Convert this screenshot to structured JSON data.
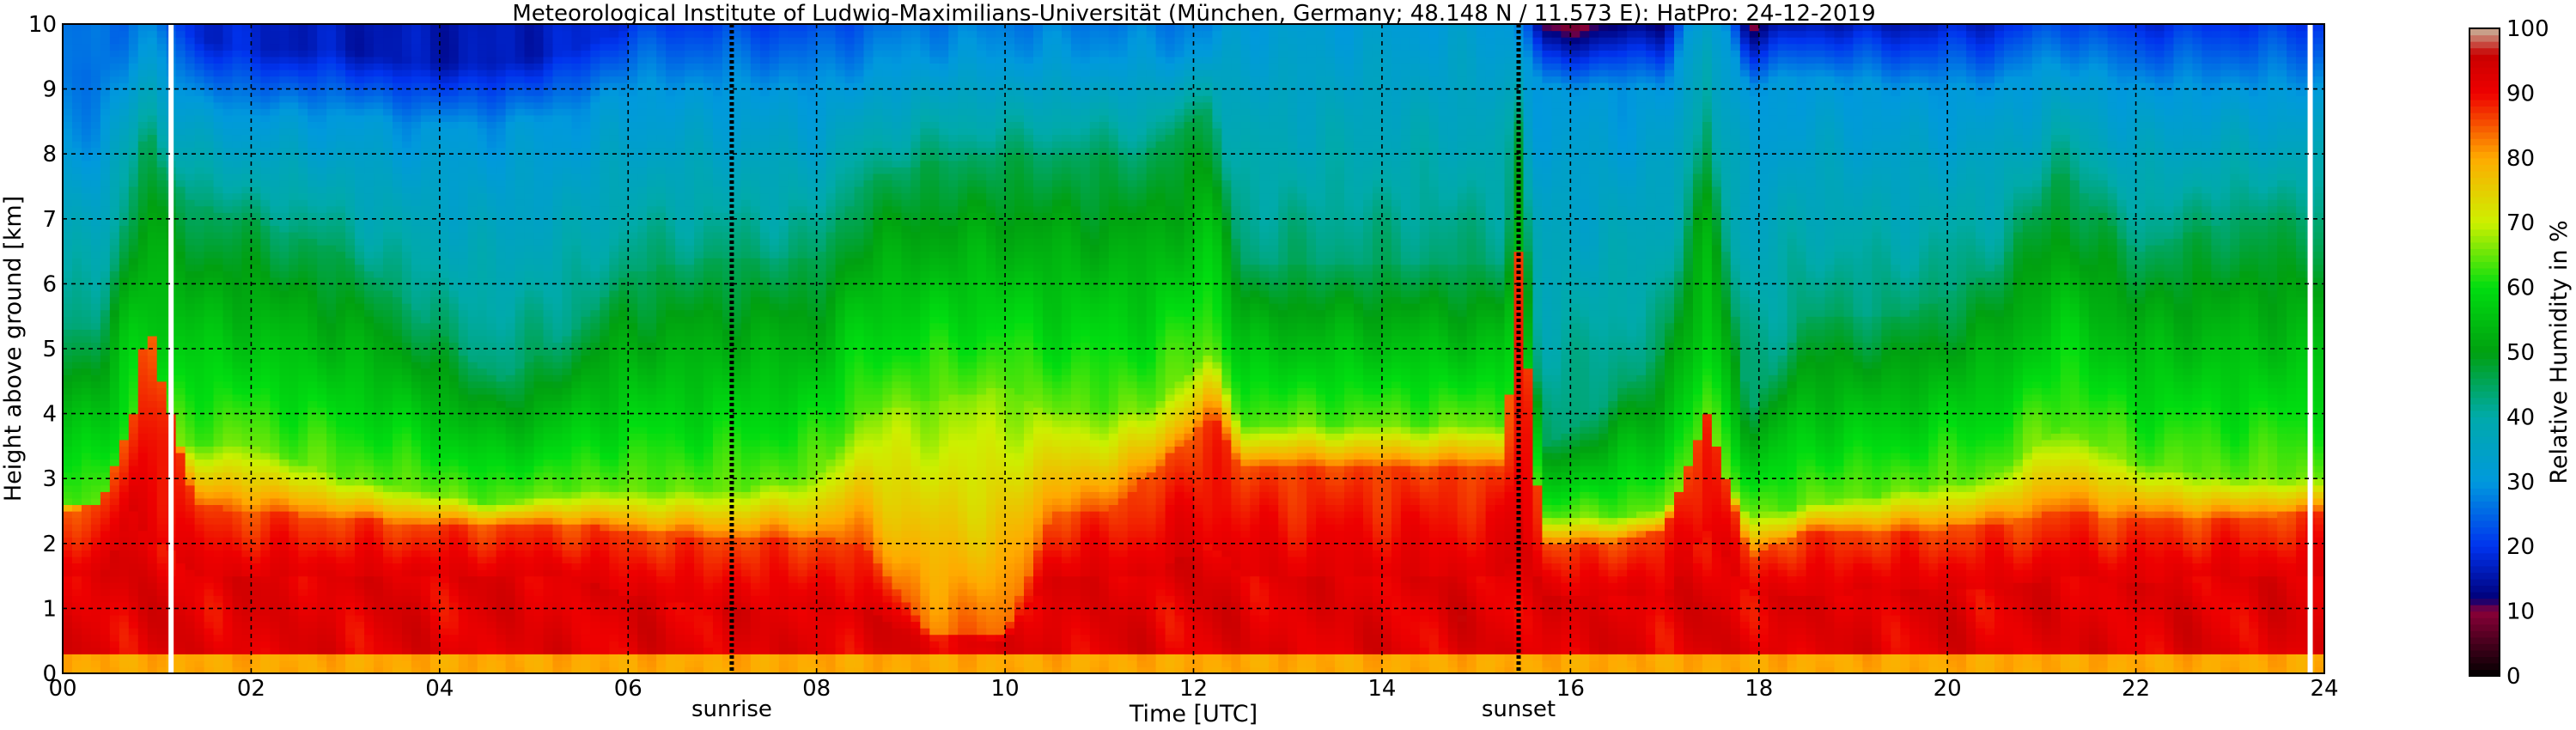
{
  "chart_data": {
    "type": "heatmap",
    "title": "Meteorological Institute of Ludwig-Maximilians-Universität (München, Germany; 48.148 N / 11.573 E):    HatPro: 24-12-2019",
    "xlabel": "Time [UTC]",
    "ylabel": "Height above ground [km]",
    "colorbar_label": "Relative Humidity in %",
    "xlim": [
      0,
      24
    ],
    "ylim": [
      0,
      10
    ],
    "clim": [
      0,
      100
    ],
    "grid": true,
    "x_ticks": [
      "00",
      "02",
      "04",
      "06",
      "08",
      "10",
      "12",
      "14",
      "16",
      "18",
      "20",
      "22",
      "24"
    ],
    "y_ticks": [
      "0",
      "1",
      "2",
      "3",
      "4",
      "5",
      "6",
      "7",
      "8",
      "9",
      "10"
    ],
    "colorbar_ticks": [
      "0",
      "10",
      "20",
      "30",
      "40",
      "50",
      "60",
      "70",
      "80",
      "90",
      "100"
    ],
    "events": [
      {
        "label": "sunrise",
        "x": 7.1
      },
      {
        "label": "sunset",
        "x": 15.45
      }
    ],
    "gaps": [
      1.15,
      23.85
    ],
    "colormap": [
      {
        "v": 0,
        "color": "#000000"
      },
      {
        "v": 10,
        "color": "#8a0038"
      },
      {
        "v": 12,
        "color": "#00007a"
      },
      {
        "v": 20,
        "color": "#0033ee"
      },
      {
        "v": 30,
        "color": "#0099dd"
      },
      {
        "v": 40,
        "color": "#00aaaa"
      },
      {
        "v": 50,
        "color": "#00a010"
      },
      {
        "v": 60,
        "color": "#00dd10"
      },
      {
        "v": 70,
        "color": "#ccf000"
      },
      {
        "v": 80,
        "color": "#ffaa00"
      },
      {
        "v": 90,
        "color": "#ee0000"
      },
      {
        "v": 96,
        "color": "#c80000"
      },
      {
        "v": 100,
        "color": "#c8b69c"
      }
    ],
    "profiles": [
      {
        "t": 0.0,
        "b": 2.5,
        "d": 1.5,
        "m": 2.6,
        "u": 5.3,
        "x": 8.2,
        "s": 0.3
      },
      {
        "t": 0.4,
        "b": 2.6,
        "d": 1.5,
        "m": 2.5,
        "u": 5.3,
        "x": 8.2,
        "s": 0.3
      },
      {
        "t": 0.75,
        "b": 4.0,
        "d": 2.5,
        "m": 3.5,
        "u": 7.5,
        "x": 9.5,
        "s": 0.3
      },
      {
        "t": 0.9,
        "b": 5.5,
        "d": 2.0,
        "m": 3.5,
        "u": 8.5,
        "x": 9.6,
        "s": 0.4
      },
      {
        "t": 1.05,
        "b": 4.5,
        "d": 2.0,
        "m": 3.5,
        "u": 7.8,
        "x": 9.3,
        "s": 0.5
      },
      {
        "t": 1.4,
        "b": 2.6,
        "d": 1.5,
        "m": 3.5,
        "u": 7.2,
        "x": 8.8,
        "s": 0.8
      },
      {
        "t": 2.0,
        "b": 2.5,
        "d": 1.5,
        "m": 3.5,
        "u": 7.0,
        "x": 8.6,
        "s": 0.9
      },
      {
        "t": 3.0,
        "b": 2.4,
        "d": 1.5,
        "m": 3.0,
        "u": 6.5,
        "x": 8.6,
        "s": 1.0
      },
      {
        "t": 3.8,
        "b": 2.3,
        "d": 1.5,
        "m": 2.8,
        "u": 5.5,
        "x": 8.4,
        "s": 1.0
      },
      {
        "t": 4.6,
        "b": 2.3,
        "d": 1.5,
        "m": 2.6,
        "u": 4.5,
        "x": 8.4,
        "s": 1.0
      },
      {
        "t": 5.4,
        "b": 2.3,
        "d": 1.5,
        "m": 2.8,
        "u": 5.2,
        "x": 8.6,
        "s": 0.9
      },
      {
        "t": 6.0,
        "b": 2.2,
        "d": 1.2,
        "m": 2.8,
        "u": 6.2,
        "x": 9.0,
        "s": 0.7
      },
      {
        "t": 7.0,
        "b": 2.1,
        "d": 1.0,
        "m": 2.8,
        "u": 6.4,
        "x": 9.0,
        "s": 0.6
      },
      {
        "t": 8.0,
        "b": 2.1,
        "d": 1.0,
        "m": 3.0,
        "u": 6.4,
        "x": 9.0,
        "s": 0.6
      },
      {
        "t": 8.5,
        "b": 2.0,
        "d": 1.0,
        "m": 4.0,
        "u": 7.6,
        "x": 9.2,
        "s": 0.5
      },
      {
        "t": 9.2,
        "b": 0.6,
        "d": 0.5,
        "m": 4.2,
        "u": 7.9,
        "x": 9.5,
        "s": 0.4
      },
      {
        "t": 10.0,
        "b": 0.6,
        "d": 0.5,
        "m": 4.4,
        "u": 8.0,
        "x": 9.5,
        "s": 0.4
      },
      {
        "t": 10.5,
        "b": 2.5,
        "d": 1.5,
        "m": 4.0,
        "u": 8.0,
        "x": 9.5,
        "s": 0.4
      },
      {
        "t": 11.0,
        "b": 2.5,
        "d": 1.5,
        "m": 4.0,
        "u": 8.0,
        "x": 9.5,
        "s": 0.4
      },
      {
        "t": 11.5,
        "b": 3.0,
        "d": 1.5,
        "m": 4.0,
        "u": 8.0,
        "x": 9.5,
        "s": 0.4
      },
      {
        "t": 12.2,
        "b": 4.0,
        "d": 2.0,
        "m": 5.0,
        "u": 8.8,
        "x": 9.6,
        "s": 0.4
      },
      {
        "t": 12.5,
        "b": 3.2,
        "d": 1.5,
        "m": 3.8,
        "u": 6.3,
        "x": 10.5,
        "s": 0.6
      },
      {
        "t": 14.0,
        "b": 3.2,
        "d": 1.5,
        "m": 3.8,
        "u": 6.3,
        "x": 10.5,
        "s": 0.6
      },
      {
        "t": 15.3,
        "b": 3.2,
        "d": 1.5,
        "m": 3.8,
        "u": 6.3,
        "x": 10.5,
        "s": 0.6
      },
      {
        "t": 15.45,
        "b": 6.5,
        "d": 2.5,
        "m": 4.0,
        "u": 8.5,
        "x": 9.8,
        "s": 0.5
      },
      {
        "t": 15.7,
        "b": 2.0,
        "d": 1.2,
        "m": 2.4,
        "u": 3.5,
        "x": 9.0,
        "s": 1.6
      },
      {
        "t": 16.3,
        "b": 2.0,
        "d": 1.2,
        "m": 2.4,
        "u": 4.0,
        "x": 9.0,
        "s": 1.4
      },
      {
        "t": 17.0,
        "b": 2.2,
        "d": 1.2,
        "m": 2.5,
        "u": 5.0,
        "x": 9.0,
        "s": 1.2
      },
      {
        "t": 17.45,
        "b": 4.0,
        "d": 2.2,
        "m": 3.5,
        "u": 8.5,
        "x": 10.5,
        "s": 0.6
      },
      {
        "t": 17.9,
        "b": 1.8,
        "d": 1.2,
        "m": 2.4,
        "u": 4.0,
        "x": 9.0,
        "s": 1.4
      },
      {
        "t": 18.5,
        "b": 2.2,
        "d": 1.2,
        "m": 2.6,
        "u": 5.5,
        "x": 9.2,
        "s": 1.2
      },
      {
        "t": 19.5,
        "b": 2.2,
        "d": 1.3,
        "m": 2.8,
        "u": 5.5,
        "x": 9.0,
        "s": 1.0
      },
      {
        "t": 20.5,
        "b": 2.3,
        "d": 1.3,
        "m": 3.0,
        "u": 6.2,
        "x": 9.0,
        "s": 0.9
      },
      {
        "t": 21.2,
        "b": 2.5,
        "d": 1.5,
        "m": 3.8,
        "u": 7.8,
        "x": 9.4,
        "s": 0.8
      },
      {
        "t": 22.0,
        "b": 2.4,
        "d": 1.4,
        "m": 3.2,
        "u": 6.5,
        "x": 9.0,
        "s": 0.8
      },
      {
        "t": 23.0,
        "b": 2.4,
        "d": 1.5,
        "m": 3.0,
        "u": 7.0,
        "x": 9.0,
        "s": 0.7
      },
      {
        "t": 24.0,
        "b": 2.5,
        "d": 1.5,
        "m": 3.0,
        "u": 7.0,
        "x": 9.0,
        "s": 0.7
      }
    ]
  }
}
